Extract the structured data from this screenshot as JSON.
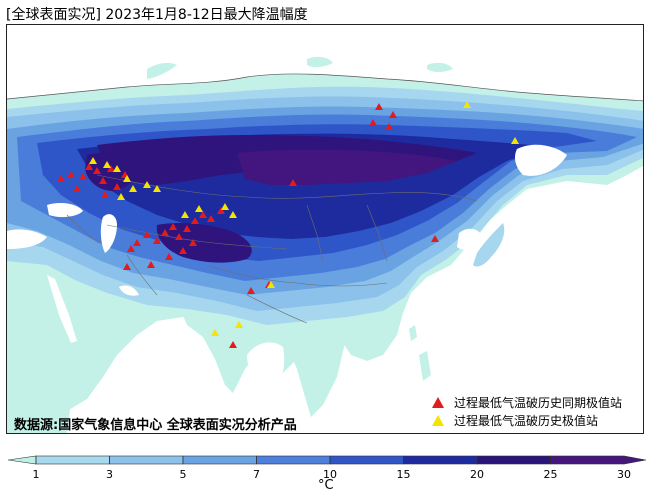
{
  "title": "[全球表面实况] 2023年1月8-12日最大降温幅度",
  "source": "数据源:国家气象信息中心 全球表面实况分析产品",
  "legend": {
    "record_period": "过程最低气温破历史同期极值站",
    "record_all": "过程最低气温破历史极值站",
    "record_period_color": "#e21b1b",
    "record_all_color": "#f4e400"
  },
  "colorbar": {
    "unit": "°C",
    "ticks": [
      "1",
      "3",
      "5",
      "7",
      "10",
      "15",
      "20",
      "25",
      "30"
    ],
    "colors": [
      "#bff0e6",
      "#a8d8ee",
      "#8cc2ea",
      "#6aa3e2",
      "#4d7fdc",
      "#2f55c8",
      "#1d2aa0",
      "#2a137a",
      "#45157e"
    ]
  }
}
